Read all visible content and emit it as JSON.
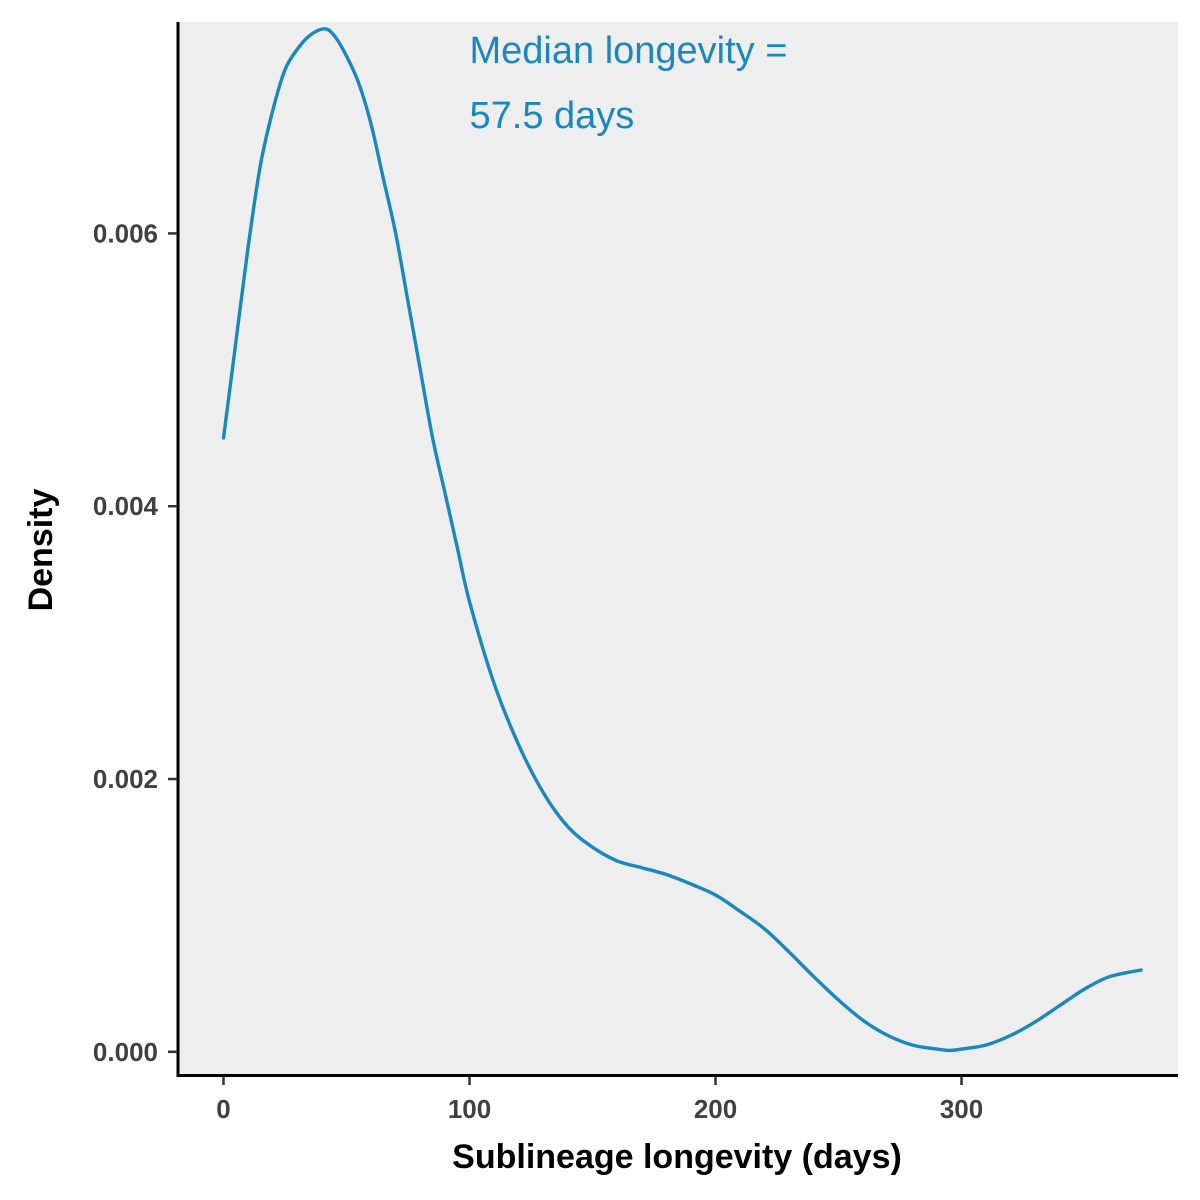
{
  "chart_data": {
    "type": "line",
    "title": "",
    "xlabel": "Sublineage longevity (days)",
    "ylabel": "Density",
    "xlim": [
      -18.5,
      388
    ],
    "ylim": [
      -0.00017,
      0.00755
    ],
    "x_ticks": [
      {
        "value": 0,
        "label": "0"
      },
      {
        "value": 100,
        "label": "100"
      },
      {
        "value": 200,
        "label": "200"
      },
      {
        "value": 300,
        "label": "300"
      }
    ],
    "y_ticks": [
      {
        "value": 0.0,
        "label": "0.000"
      },
      {
        "value": 0.002,
        "label": "0.002"
      },
      {
        "value": 0.004,
        "label": "0.004"
      },
      {
        "value": 0.006,
        "label": "0.006"
      }
    ],
    "annotation": {
      "lines": [
        "Median longevity =",
        "57.5 days"
      ],
      "x": 100,
      "y": 0.00725
    },
    "grid": false,
    "legend": "none",
    "colors": {
      "line": "#1a87c1",
      "annotation": "#1a87c1",
      "panel_background": "#eeeeee",
      "axis": "#000000"
    },
    "series": [
      {
        "x": [
          0,
          5,
          10,
          15,
          20,
          25,
          30,
          35,
          41,
          45,
          50,
          55,
          60,
          65,
          70,
          75,
          80,
          85,
          90,
          95,
          100,
          110,
          120,
          130,
          140,
          150,
          160,
          170,
          180,
          190,
          200,
          210,
          220,
          230,
          240,
          250,
          260,
          270,
          280,
          290,
          295,
          300,
          310,
          320,
          330,
          340,
          350,
          360,
          373
        ],
        "y": [
          0.0045,
          0.0052,
          0.0059,
          0.0065,
          0.0069,
          0.0072,
          0.00735,
          0.00745,
          0.0075,
          0.00745,
          0.0073,
          0.0071,
          0.0068,
          0.0064,
          0.006,
          0.0055,
          0.005,
          0.0045,
          0.0041,
          0.0037,
          0.0033,
          0.0027,
          0.00225,
          0.0019,
          0.00165,
          0.0015,
          0.0014,
          0.00135,
          0.0013,
          0.00123,
          0.00115,
          0.00103,
          0.0009,
          0.00073,
          0.00055,
          0.00038,
          0.00023,
          0.00012,
          5e-05,
          2e-05,
          1e-05,
          2e-05,
          5e-05,
          0.00012,
          0.00022,
          0.00034,
          0.00046,
          0.00055,
          0.0006
        ]
      }
    ]
  }
}
